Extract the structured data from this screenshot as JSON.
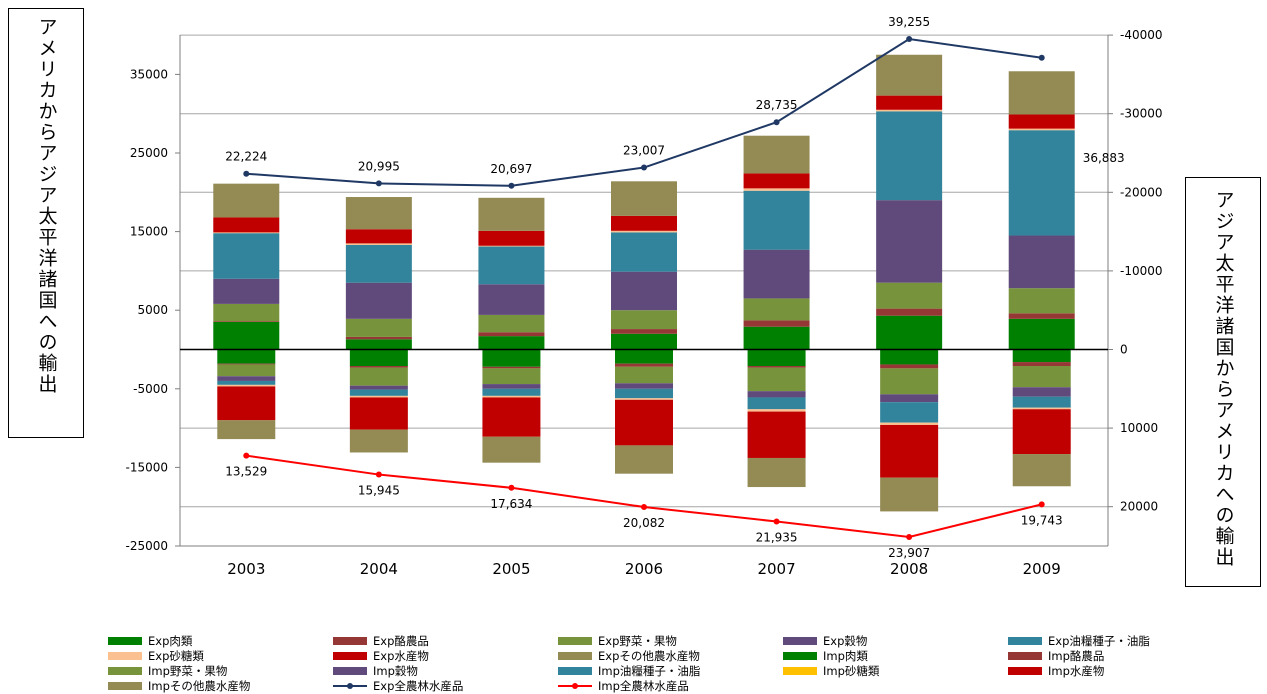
{
  "left_label": "アメリカからアジア太平洋諸国への輸出",
  "right_label": "アジア太平洋諸国からアメリカへの輸出",
  "chart_data": {
    "type": "bar",
    "stacked": true,
    "categories": [
      "2003",
      "2004",
      "2005",
      "2006",
      "2007",
      "2008",
      "2009"
    ],
    "y_left": {
      "ticks": [
        35000,
        25000,
        15000,
        5000,
        -5000,
        -15000,
        -25000
      ],
      "range": [
        -25000,
        40000
      ]
    },
    "y_right": {
      "ticks": [
        "-40000",
        "-30000",
        "-20000",
        "-10000",
        "0",
        "10000",
        "20000"
      ]
    },
    "grid": true,
    "export_series": [
      {
        "name": "Exp肉類",
        "color": "#008000",
        "values": [
          3500,
          1300,
          1700,
          2000,
          2900,
          4300,
          3900
        ]
      },
      {
        "name": "Exp酪農品",
        "color": "#953735",
        "values": [
          100,
          300,
          500,
          600,
          800,
          900,
          700
        ]
      },
      {
        "name": "Exp野菜・果物",
        "color": "#77933c",
        "values": [
          2200,
          2300,
          2200,
          2400,
          2800,
          3300,
          3200
        ]
      },
      {
        "name": "Exp穀物",
        "color": "#604a7b",
        "values": [
          3200,
          4600,
          3900,
          4900,
          6200,
          10500,
          6700
        ]
      },
      {
        "name": "Exp油糧種子・油脂",
        "color": "#31849b",
        "values": [
          5800,
          4800,
          4800,
          5000,
          7500,
          11300,
          13400
        ]
      },
      {
        "name": "Exp砂糖類",
        "color": "#fac090",
        "values": [
          100,
          200,
          100,
          200,
          300,
          200,
          200
        ]
      },
      {
        "name": "Exp水産物",
        "color": "#c00000",
        "values": [
          1900,
          1800,
          1900,
          1900,
          1900,
          1800,
          1800
        ]
      },
      {
        "name": "Expその他農水産物",
        "color": "#948a54",
        "values": [
          4300,
          4100,
          4200,
          4400,
          4800,
          5200,
          5500
        ]
      }
    ],
    "import_series": [
      {
        "name": "Imp肉類",
        "color": "#008000",
        "values": [
          1800,
          2100,
          2200,
          1800,
          2100,
          1900,
          1600
        ]
      },
      {
        "name": "Imp酪農品",
        "color": "#953735",
        "values": [
          100,
          200,
          200,
          400,
          200,
          500,
          500
        ]
      },
      {
        "name": "Imp野菜・果物",
        "color": "#77933c",
        "values": [
          1500,
          2300,
          2000,
          2100,
          3000,
          3300,
          2700
        ]
      },
      {
        "name": "Imp穀物",
        "color": "#604a7b",
        "values": [
          600,
          500,
          600,
          700,
          800,
          1000,
          1200
        ]
      },
      {
        "name": "Imp油糧種子・油脂",
        "color": "#31849b",
        "values": [
          500,
          800,
          900,
          1200,
          1500,
          2600,
          1400
        ]
      },
      {
        "name": "Imp砂糖類",
        "color": "#fac090",
        "values": [
          200,
          200,
          200,
          200,
          300,
          300,
          200
        ]
      },
      {
        "name": "Imp水産物",
        "color": "#c00000",
        "values": [
          4300,
          4100,
          5000,
          5800,
          5900,
          6700,
          5700
        ]
      },
      {
        "name": "Impその他農水産物",
        "color": "#948a54",
        "values": [
          2400,
          2900,
          3300,
          3600,
          3700,
          4300,
          4100
        ]
      }
    ],
    "line_series": [
      {
        "name": "Exp全農林水産品",
        "color": "#1f3864",
        "values": [
          22224,
          20995,
          20697,
          23007,
          28735,
          39255,
          36883
        ],
        "labels": [
          "22,224",
          "20,995",
          "20,697",
          "23,007",
          "28,735",
          "39,255",
          "36,883"
        ]
      },
      {
        "name": "Imp全農林水産品",
        "color": "#ff0000",
        "values": [
          13529,
          15945,
          17634,
          20082,
          21935,
          23907,
          19743
        ],
        "labels": [
          "13,529",
          "15,945",
          "17,634",
          "20,082",
          "21,935",
          "23,907",
          "19,743"
        ]
      }
    ]
  },
  "legend": [
    {
      "label": "Exp肉類",
      "kind": "bar",
      "color": "#008000"
    },
    {
      "label": "Exp酪農品",
      "kind": "bar",
      "color": "#953735"
    },
    {
      "label": "Exp野菜・果物",
      "kind": "bar",
      "color": "#77933c"
    },
    {
      "label": "Exp穀物",
      "kind": "bar",
      "color": "#604a7b"
    },
    {
      "label": "Exp油糧種子・油脂",
      "kind": "bar",
      "color": "#31849b"
    },
    {
      "label": "Exp砂糖類",
      "kind": "bar",
      "color": "#fac090"
    },
    {
      "label": "Exp水産物",
      "kind": "bar",
      "color": "#c00000"
    },
    {
      "label": "Expその他農水産物",
      "kind": "bar",
      "color": "#948a54"
    },
    {
      "label": "Imp肉類",
      "kind": "bar",
      "color": "#008000"
    },
    {
      "label": "Imp酪農品",
      "kind": "bar",
      "color": "#953735"
    },
    {
      "label": "Imp野菜・果物",
      "kind": "bar",
      "color": "#77933c"
    },
    {
      "label": "Imp穀物",
      "kind": "bar",
      "color": "#604a7b"
    },
    {
      "label": "Imp油糧種子・油脂",
      "kind": "bar",
      "color": "#31849b"
    },
    {
      "label": "Imp砂糖類",
      "kind": "bar",
      "color": "#ffc000"
    },
    {
      "label": "Imp水産物",
      "kind": "bar",
      "color": "#c00000"
    },
    {
      "label": "Impその他農水産物",
      "kind": "bar",
      "color": "#948a54"
    },
    {
      "label": "Exp全農林水産品",
      "kind": "line",
      "color": "#1f3864"
    },
    {
      "label": "Imp全農林水産品",
      "kind": "line",
      "color": "#ff0000"
    }
  ]
}
